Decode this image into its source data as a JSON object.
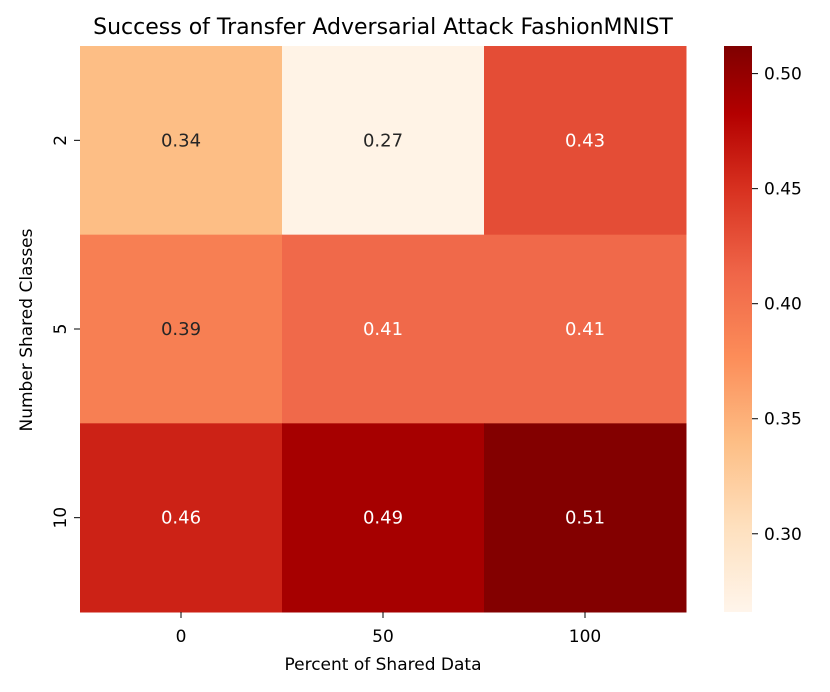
{
  "chart_data": {
    "type": "heatmap",
    "title": "Success of Transfer Adversarial Attack FashionMNIST",
    "xlabel": "Percent of Shared Data",
    "ylabel": "Number Shared Classes",
    "x_categories": [
      "0",
      "50",
      "100"
    ],
    "y_categories": [
      "2",
      "5",
      "10"
    ],
    "values": [
      [
        0.34,
        0.27,
        0.43
      ],
      [
        0.39,
        0.41,
        0.41
      ],
      [
        0.46,
        0.49,
        0.51
      ]
    ],
    "value_labels": [
      [
        "0.34",
        "0.27",
        "0.43"
      ],
      [
        "0.39",
        "0.41",
        "0.41"
      ],
      [
        "0.46",
        "0.49",
        "0.51"
      ]
    ],
    "colormap": "OrRd-like (Reds/Oranges)",
    "colorbar": {
      "min": 0.266,
      "max": 0.512,
      "ticks": [
        0.3,
        0.35,
        0.4,
        0.45,
        0.5
      ],
      "tick_labels": [
        "0.30",
        "0.35",
        "0.40",
        "0.45",
        "0.50"
      ]
    },
    "grid": false,
    "legend": "colorbar-right"
  }
}
